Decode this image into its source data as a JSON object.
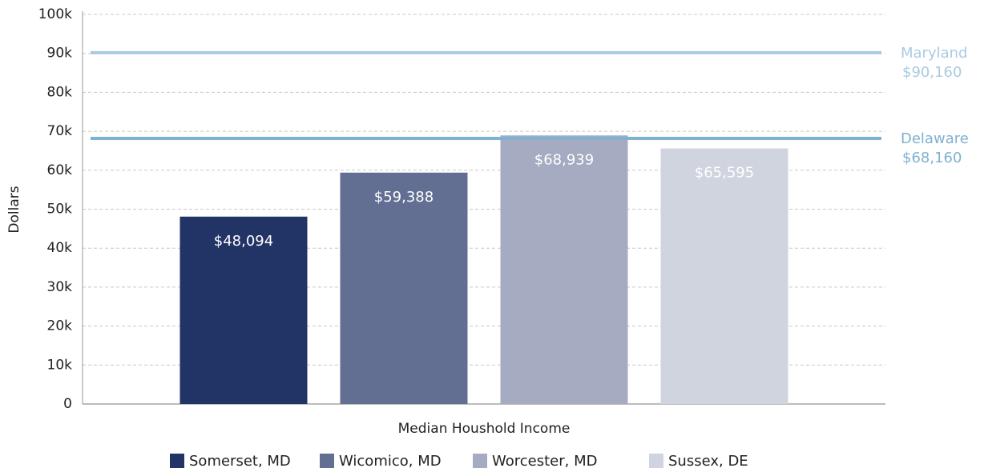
{
  "chart_data": {
    "type": "bar",
    "categories": [
      "Median Houshold Income"
    ],
    "x_label": "Median Houshold Income",
    "y_label": "Dollars",
    "series": [
      {
        "name": "Somerset, MD",
        "color": "#223366",
        "values": [
          48094
        ],
        "value_labels": [
          "$48,094"
        ]
      },
      {
        "name": "Wicomico, MD",
        "color": "#626f93",
        "values": [
          59388
        ],
        "value_labels": [
          "$59,388"
        ]
      },
      {
        "name": "Worcester, MD",
        "color": "#a5abc1",
        "values": [
          68939
        ],
        "value_labels": [
          "$68,939"
        ]
      },
      {
        "name": "Sussex, DE",
        "color": "#d0d4df",
        "values": [
          65595
        ],
        "value_labels": [
          "$65,595"
        ]
      }
    ],
    "reference_lines": [
      {
        "name": "Maryland",
        "value": 90160,
        "value_label": "$90,160",
        "color": "#a9cbe0"
      },
      {
        "name": "Delaware",
        "value": 68160,
        "value_label": "$68,160",
        "color": "#7fb1d1"
      }
    ],
    "ylim": [
      0,
      100000
    ],
    "yticks": [
      0,
      {
        "value": 10000,
        "label": "10k"
      },
      {
        "value": 20000,
        "label": "20k"
      },
      {
        "value": 30000,
        "label": "30k"
      },
      {
        "value": 40000,
        "label": "40k"
      },
      {
        "value": 50000,
        "label": "50k"
      },
      {
        "value": 60000,
        "label": "60k"
      },
      {
        "value": 70000,
        "label": "70k"
      },
      {
        "value": 80000,
        "label": "80k"
      },
      {
        "value": 90000,
        "label": "90k"
      },
      {
        "value": 100000,
        "label": "100k"
      }
    ],
    "grid": true,
    "legend": "bottom"
  }
}
